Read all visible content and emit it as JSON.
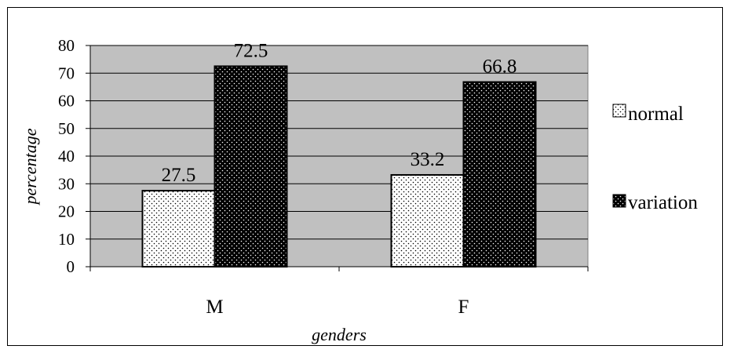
{
  "chart_data": {
    "type": "bar",
    "categories": [
      "M",
      "F"
    ],
    "series": [
      {
        "name": "normal",
        "values": [
          27.5,
          33.2
        ],
        "data_labels": [
          "27.5",
          "33.2"
        ],
        "pattern": "dotted-light",
        "color": "#ffffff"
      },
      {
        "name": "variation",
        "values": [
          72.5,
          66.8
        ],
        "data_labels": [
          "72.5",
          "66.8"
        ],
        "pattern": "dotted-dark",
        "color": "#000000"
      }
    ],
    "xlabel": "genders",
    "ylabel": "percentage",
    "ylim": [
      0,
      80
    ],
    "yticks": [
      0,
      10,
      20,
      30,
      40,
      50,
      60,
      70,
      80
    ],
    "ytick_labels": [
      "0",
      "10",
      "20",
      "30",
      "40",
      "50",
      "60",
      "70",
      "80"
    ],
    "grid": true,
    "legend_position": "right",
    "plot_background": "#c0c0c0"
  }
}
